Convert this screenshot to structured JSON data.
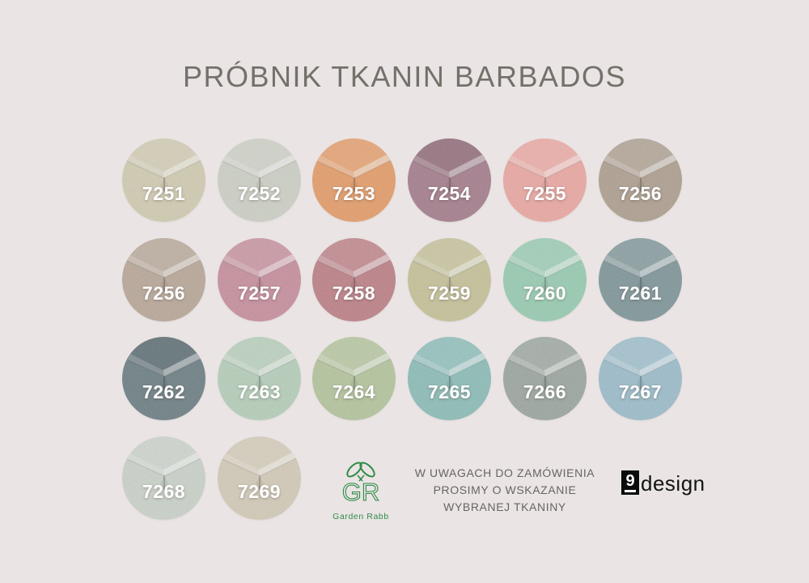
{
  "title": "PRÓBNIK TKANIN BARBADOS",
  "swatches": [
    {
      "number": "7251",
      "color": "#d5cfb5",
      "top_shade": "light"
    },
    {
      "number": "7252",
      "color": "#d1d4c9",
      "top_shade": "light"
    },
    {
      "number": "7253",
      "color": "#e8a06c",
      "top_shade": "light"
    },
    {
      "number": "7254",
      "color": "#a8808f",
      "top_shade": "dark"
    },
    {
      "number": "7255",
      "color": "#efaba5",
      "top_shade": "light"
    },
    {
      "number": "7256",
      "color": "#b2a393",
      "top_shade": "light"
    },
    {
      "number": "7256",
      "color": "#bcab9b",
      "top_shade": "light"
    },
    {
      "number": "7257",
      "color": "#ca92a0",
      "top_shade": "light"
    },
    {
      "number": "7258",
      "color": "#c0838a",
      "top_shade": "light"
    },
    {
      "number": "7259",
      "color": "#c9c59c",
      "top_shade": "light"
    },
    {
      "number": "7260",
      "color": "#9bcfb4",
      "top_shade": "light"
    },
    {
      "number": "7261",
      "color": "#82999c",
      "top_shade": "light"
    },
    {
      "number": "7262",
      "color": "#6f8287",
      "top_shade": "dark"
    },
    {
      "number": "7263",
      "color": "#b9d2bd",
      "top_shade": "light"
    },
    {
      "number": "7264",
      "color": "#b7c8a0",
      "top_shade": "light"
    },
    {
      "number": "7265",
      "color": "#8fc0bb",
      "top_shade": "light"
    },
    {
      "number": "7266",
      "color": "#9fa9a3",
      "top_shade": "light"
    },
    {
      "number": "7267",
      "color": "#9fc0ce",
      "top_shade": "light"
    },
    {
      "number": "7268",
      "color": "#ced6cd",
      "top_shade": "light"
    },
    {
      "number": "7269",
      "color": "#d7cebb",
      "top_shade": "light"
    }
  ],
  "note_lines": [
    "W UWAGACH DO ZAMÓWIENIA",
    "PROSIMY O WSKAZANIE",
    "WYBRANEJ TKANINY"
  ],
  "logos": {
    "garden_rabb": {
      "monogram": "GR",
      "label": "Garden Rabb",
      "color": "#2e8c49"
    },
    "nine_design": {
      "number": "9",
      "word": "design"
    }
  },
  "colors": {
    "background": "#eae4e4",
    "title_text": "#74716b",
    "note_text": "#676560",
    "swatch_number_text": "#ffffff"
  }
}
